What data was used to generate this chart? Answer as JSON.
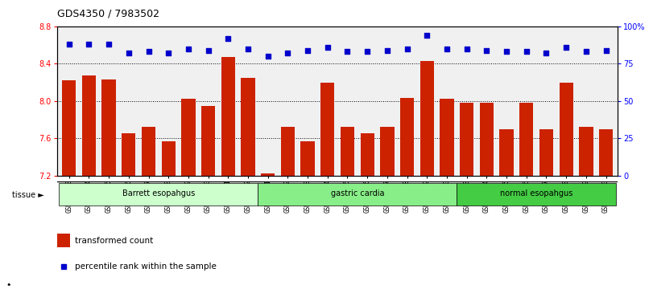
{
  "title": "GDS4350 / 7983502",
  "samples": [
    "GSM851983",
    "GSM851984",
    "GSM851985",
    "GSM851986",
    "GSM851987",
    "GSM851988",
    "GSM851989",
    "GSM851990",
    "GSM851991",
    "GSM851992",
    "GSM852001",
    "GSM852002",
    "GSM852003",
    "GSM852004",
    "GSM852005",
    "GSM852006",
    "GSM852007",
    "GSM852008",
    "GSM852009",
    "GSM852010",
    "GSM851993",
    "GSM851994",
    "GSM851995",
    "GSM851996",
    "GSM851997",
    "GSM851998",
    "GSM851999",
    "GSM852000"
  ],
  "bar_values": [
    8.22,
    8.27,
    8.23,
    7.65,
    7.72,
    7.57,
    8.02,
    7.95,
    8.47,
    8.25,
    7.22,
    7.72,
    7.57,
    8.2,
    7.72,
    7.65,
    7.72,
    8.03,
    8.43,
    8.02,
    7.98,
    7.98,
    7.7,
    7.98,
    7.7,
    8.2,
    7.72,
    7.7
  ],
  "percentile_values": [
    88,
    88,
    88,
    82,
    83,
    82,
    85,
    84,
    92,
    85,
    80,
    82,
    84,
    86,
    83,
    83,
    84,
    85,
    94,
    85,
    85,
    84,
    83,
    83,
    82,
    86,
    83,
    84
  ],
  "groups": [
    {
      "label": "Barrett esopahgus",
      "start": 0,
      "end": 9,
      "color": "#ccffcc"
    },
    {
      "label": "gastric cardia",
      "start": 10,
      "end": 19,
      "color": "#88ee88"
    },
    {
      "label": "normal esopahgus",
      "start": 20,
      "end": 27,
      "color": "#44cc44"
    }
  ],
  "bar_color": "#cc2200",
  "dot_color": "#0000cc",
  "ylim_left": [
    7.2,
    8.8
  ],
  "ylim_right": [
    0,
    100
  ],
  "yticks_left": [
    7.2,
    7.6,
    8.0,
    8.4,
    8.8
  ],
  "yticks_right": [
    0,
    25,
    50,
    75,
    100
  ],
  "ytick_labels_right": [
    "0",
    "25",
    "50",
    "75",
    "100%"
  ],
  "grid_values": [
    7.6,
    8.0,
    8.4
  ],
  "ymin": 7.2,
  "background_color": "#ffffff",
  "plot_bg_color": "#f0f0f0",
  "tissue_label": "tissue ►",
  "legend_bar_label": "transformed count",
  "legend_dot_label": "percentile rank within the sample"
}
